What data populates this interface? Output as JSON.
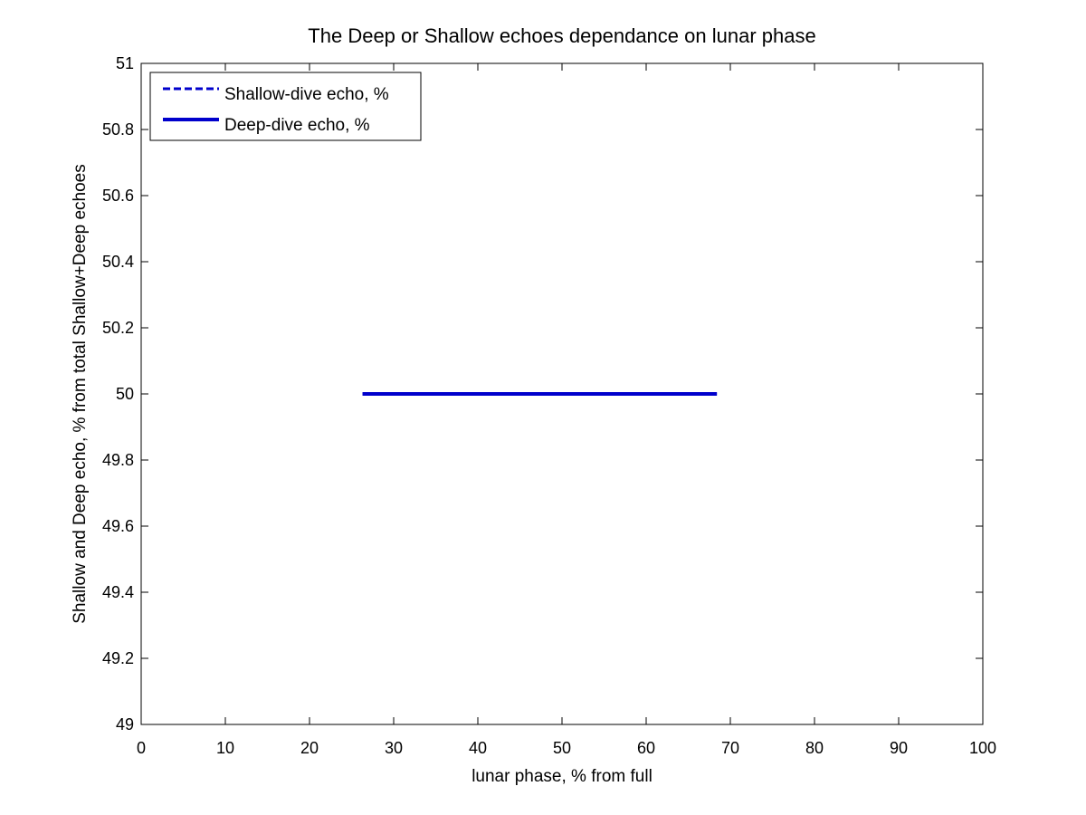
{
  "chart_data": {
    "type": "line",
    "title": "The Deep or Shallow echoes dependance on lunar phase",
    "xlabel": "lunar phase, % from full",
    "ylabel": "Shallow and Deep echo, % from total Shallow+Deep echoes",
    "xlim": [
      0,
      100
    ],
    "ylim": [
      49,
      51
    ],
    "xticks": [
      0,
      10,
      20,
      30,
      40,
      50,
      60,
      70,
      80,
      90,
      100
    ],
    "yticks": [
      49,
      49.2,
      49.4,
      49.6,
      49.8,
      50,
      50.2,
      50.4,
      50.6,
      50.8,
      51
    ],
    "ytick_labels": [
      "49",
      "49.2",
      "49.4",
      "49.6",
      "49.8",
      "50",
      "50.2",
      "50.4",
      "50.6",
      "50.8",
      "51"
    ],
    "grid": false,
    "legend_position": "top-left",
    "series": [
      {
        "name": "Shallow-dive echo, %",
        "style": "dashed",
        "color": "#0000cc",
        "x": [
          26.3,
          68.4
        ],
        "y": [
          50,
          50
        ]
      },
      {
        "name": "Deep-dive echo, %",
        "style": "solid",
        "color": "#0000cc",
        "x": [
          26.3,
          68.4
        ],
        "y": [
          50,
          50
        ]
      }
    ]
  }
}
